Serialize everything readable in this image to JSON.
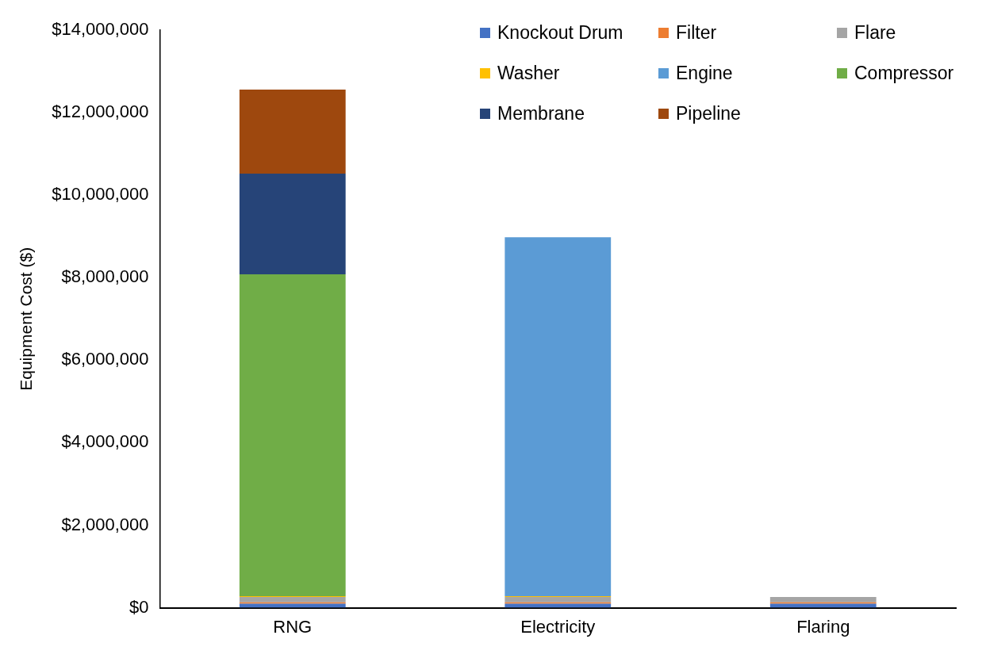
{
  "chart_data": {
    "type": "bar",
    "stacked": true,
    "ylabel": "Equipment Cost ($)",
    "categories": [
      "RNG",
      "Electricity",
      "Flaring"
    ],
    "series": [
      {
        "name": "Knockout Drum",
        "color": "#4472c4",
        "values": [
          100000,
          100000,
          100000
        ]
      },
      {
        "name": "Filter",
        "color": "#ed7d31",
        "values": [
          30000,
          30000,
          30000
        ]
      },
      {
        "name": "Flare",
        "color": "#a5a5a5",
        "values": [
          130000,
          130000,
          130000
        ]
      },
      {
        "name": "Washer",
        "color": "#ffc000",
        "values": [
          20000,
          20000,
          0
        ]
      },
      {
        "name": "Engine",
        "color": "#5b9bd5",
        "values": [
          0,
          8700000,
          0
        ]
      },
      {
        "name": "Compressor",
        "color": "#70ad47",
        "values": [
          7800000,
          0,
          0
        ]
      },
      {
        "name": "Membrane",
        "color": "#264478",
        "values": [
          2440000,
          0,
          0
        ]
      },
      {
        "name": "Pipeline",
        "color": "#9e480e",
        "values": [
          2040000,
          0,
          0
        ]
      }
    ],
    "ylim": [
      0,
      14000000
    ],
    "yticks": [
      {
        "value": 0,
        "label": "$0"
      },
      {
        "value": 2000000,
        "label": "$2,000,000"
      },
      {
        "value": 4000000,
        "label": "$4,000,000"
      },
      {
        "value": 6000000,
        "label": "$6,000,000"
      },
      {
        "value": 8000000,
        "label": "$8,000,000"
      },
      {
        "value": 10000000,
        "label": "$10,000,000"
      },
      {
        "value": 12000000,
        "label": "$12,000,000"
      },
      {
        "value": 14000000,
        "label": "$14,000,000"
      }
    ],
    "grid": false,
    "legend": "top right"
  }
}
